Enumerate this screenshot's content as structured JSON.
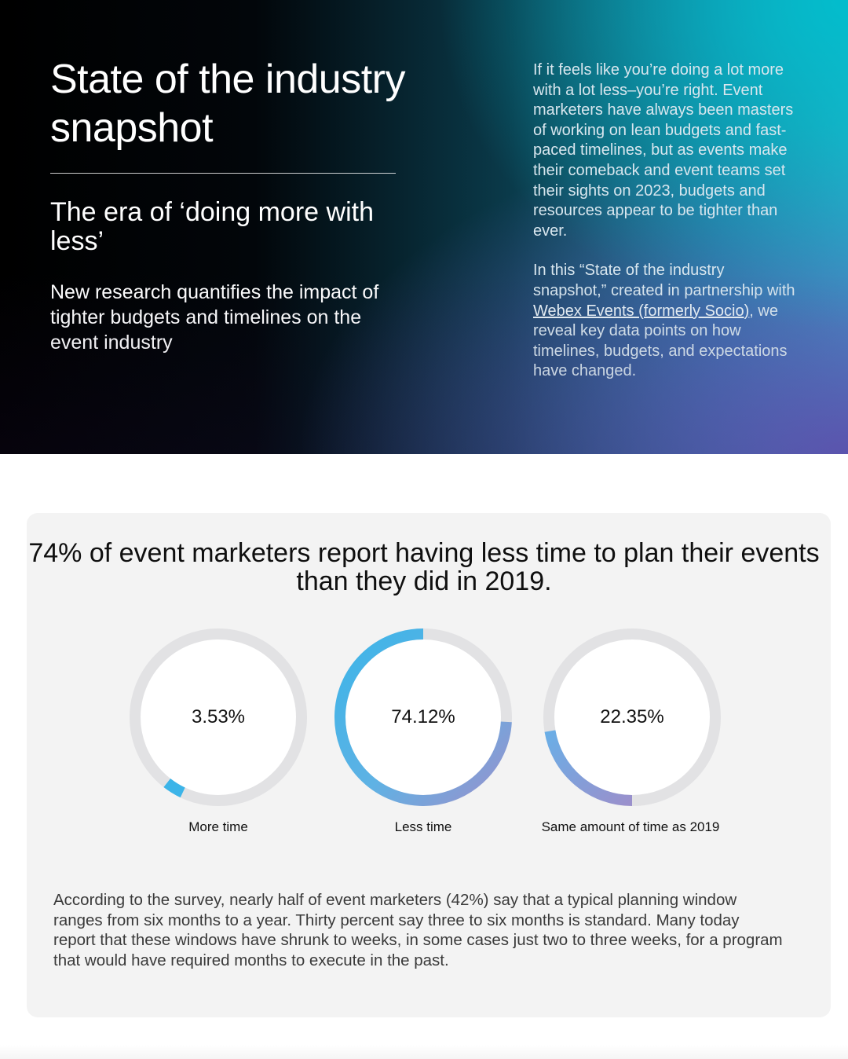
{
  "hero": {
    "title": "State of the industry snapshot",
    "subtitle": "The era of ‘doing more with less’",
    "lead": "New research quantifies the impact of tighter budgets and timelines on the event industry",
    "body_p1": "If it feels like you’re doing a lot more with a lot less–you’re right. Event marketers have always been masters of working on lean budgets and fast-paced timelines, but as events make their comeback and event teams set their sights on 2023, budgets and resources appear to be tighter than ever.",
    "body_p2_before": "In this “State of the industry snapshot,” created in partnership with ",
    "body_p2_link": "Webex Events (formerly Socio)",
    "body_p2_after": ", we reveal key data points on how timelines, budgets, and expectations have changed."
  },
  "stats": {
    "headline": "74% of event marketers report having less time to plan their events than they did in 2019.",
    "items": [
      {
        "value": "3.53%",
        "fraction": 0.0353,
        "label": "More time"
      },
      {
        "value": "74.12%",
        "fraction": 0.7412,
        "label": "Less time"
      },
      {
        "value": "22.35%",
        "fraction": 0.2235,
        "label": "Same amount of time as 2019"
      }
    ],
    "body": "According to the survey, nearly half of event marketers (42%) say that a typical planning window ranges from six months to a year. Thirty percent say three to six months is standard. Many today report that these windows have shrunk to weeks, in some cases just two to three weeks, for a program that would have required months to execute in the past."
  },
  "colors": {
    "ring_track": "#e2e2e4",
    "ring_blue": "#3cb4e8",
    "ring_purple": "#9a90cc"
  }
}
